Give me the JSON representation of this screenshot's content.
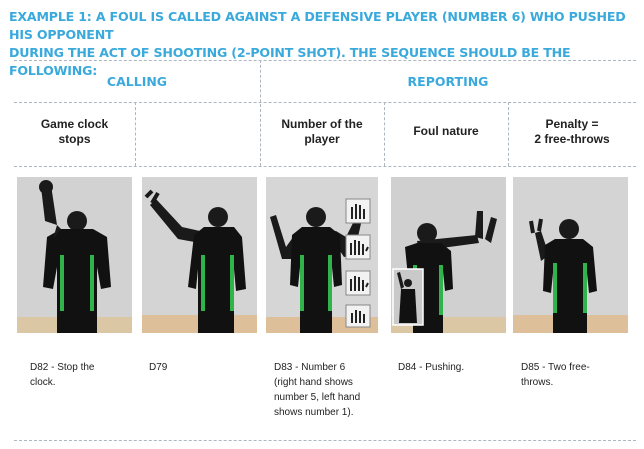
{
  "title_line1": "EXAMPLE 1: A FOUL IS CALLED AGAINST A DEFENSIVE PLAYER (NUMBER 6) WHO PUSHED HIS OPPONENT",
  "title_line2": "DURING THE ACT OF SHOOTING (2-POINT SHOT). THE SEQUENCE SHOULD BE THE FOLLOWING:",
  "sections": {
    "calling": "CALLING",
    "reporting": "REPORTING"
  },
  "columns": [
    {
      "header": [
        "Game clock",
        "stops"
      ],
      "caption": [
        "D82 - Stop the",
        "clock."
      ]
    },
    {
      "header": [
        "",
        ""
      ],
      "caption": [
        "D79"
      ]
    },
    {
      "header": [
        "Number of the",
        "player"
      ],
      "caption": [
        "D83 - Number 6",
        "(right hand shows",
        "number 5, left hand",
        "shows number 1)."
      ]
    },
    {
      "header": [
        "Foul nature",
        ""
      ],
      "caption": [
        "D84 - Pushing."
      ]
    },
    {
      "header": [
        "Penalty =",
        "2 free-throws"
      ],
      "caption": [
        "D85 - Two free-",
        "throws."
      ]
    }
  ],
  "colors": {
    "accent": "#3aa9dc",
    "uniform": "#111111",
    "stripe": "#2fb34a",
    "skin": "#1a1a1a",
    "wall": "#d4d4d4",
    "floor": "#ddc09a"
  },
  "icons": [
    "referee-stop-clock-signal",
    "referee-foul-signal",
    "referee-number-six-signal",
    "referee-pushing-signal",
    "referee-two-free-throws-signal",
    "hand-icon"
  ]
}
